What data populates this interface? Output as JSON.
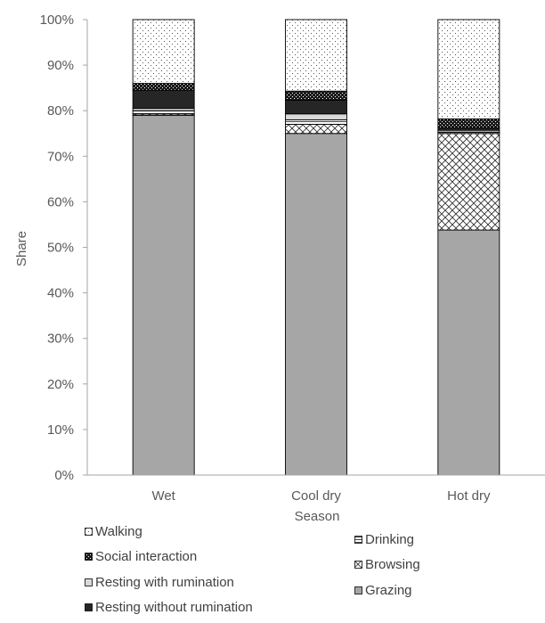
{
  "chart_data": {
    "type": "bar",
    "stacked": true,
    "title": "",
    "xlabel": "Season",
    "ylabel": "Share",
    "ylim": [
      0,
      100
    ],
    "y_ticks": [
      "0%",
      "10%",
      "20%",
      "30%",
      "40%",
      "50%",
      "60%",
      "70%",
      "80%",
      "90%",
      "100%"
    ],
    "grid": false,
    "legend_position": "bottom",
    "categories": [
      "Wet",
      "Cool dry",
      "Hot dry"
    ],
    "series": [
      {
        "name": "Grazing",
        "values": [
          79.0,
          75.0,
          53.8
        ],
        "fill": "#a6a6a6",
        "pattern": "solid"
      },
      {
        "name": "Browsing",
        "values": [
          0.3,
          2.0,
          21.2
        ],
        "fill": "#ffffff",
        "pattern": "diagcross"
      },
      {
        "name": "Drinking",
        "values": [
          0.7,
          1.0,
          0.3
        ],
        "fill": "#ffffff",
        "pattern": "hlines"
      },
      {
        "name": "Resting with rumination",
        "values": [
          0.5,
          1.3,
          0.4
        ],
        "fill": "#d9d9d9",
        "pattern": "solid"
      },
      {
        "name": "Resting without rumination",
        "values": [
          4.0,
          3.0,
          0.5
        ],
        "fill": "#262626",
        "pattern": "solid"
      },
      {
        "name": "Social interaction",
        "values": [
          1.5,
          2.0,
          2.0
        ],
        "fill": "#262626",
        "pattern": "checker"
      },
      {
        "name": "Walking",
        "values": [
          14.0,
          15.7,
          21.8
        ],
        "fill": "#ffffff",
        "pattern": "dots"
      }
    ],
    "legend_order": [
      "Walking",
      "Social interaction",
      "Resting with rumination",
      "Resting without rumination",
      "Drinking",
      "Browsing",
      "Grazing"
    ],
    "colors": {
      "axis": "#a6a6a6",
      "text": "#595959",
      "bar_edge": "#000000"
    }
  }
}
